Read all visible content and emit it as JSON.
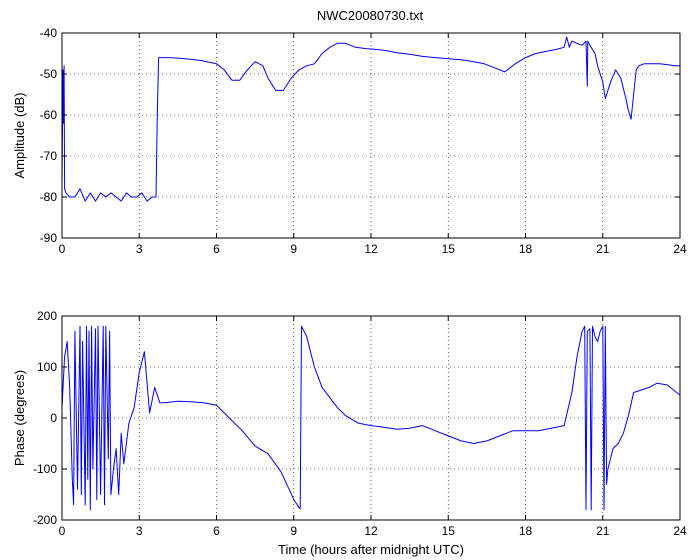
{
  "chart_data": [
    {
      "type": "line",
      "title": "NWC20080730.txt",
      "xlabel": "",
      "ylabel": "Amplitude (dB)",
      "xlim": [
        0,
        24
      ],
      "ylim": [
        -90,
        -40
      ],
      "xticks": [
        0,
        3,
        6,
        9,
        12,
        15,
        18,
        21,
        24
      ],
      "yticks": [
        -90,
        -80,
        -70,
        -60,
        -50,
        -40
      ],
      "grid": true,
      "series": [
        {
          "color": "#0000ff",
          "x": [
            0,
            0.04,
            0.06,
            0.08,
            0.1,
            0.15,
            0.3,
            0.5,
            0.7,
            0.9,
            1.1,
            1.3,
            1.5,
            1.7,
            1.9,
            2.1,
            2.3,
            2.5,
            2.7,
            2.9,
            3.1,
            3.3,
            3.5,
            3.65,
            3.7,
            3.75,
            3.8,
            4.2,
            4.8,
            5.4,
            6.0,
            6.3,
            6.6,
            6.9,
            7.2,
            7.5,
            7.8,
            8.0,
            8.3,
            8.6,
            8.9,
            9.2,
            9.5,
            9.8,
            10.1,
            10.4,
            10.7,
            11.0,
            11.4,
            11.8,
            12.2,
            12.6,
            13.0,
            13.5,
            14.0,
            14.5,
            15.0,
            15.5,
            16.0,
            16.4,
            16.8,
            17.2,
            17.6,
            18.0,
            18.4,
            18.8,
            19.2,
            19.5,
            19.6,
            19.7,
            19.8,
            20.0,
            20.2,
            20.35,
            20.4,
            20.42,
            20.5,
            20.7,
            20.8,
            20.9,
            21.0,
            21.1,
            21.3,
            21.5,
            21.7,
            21.9,
            22.0,
            22.1,
            22.2,
            22.3,
            22.4,
            22.6,
            22.9,
            23.2,
            23.5,
            23.8,
            24.0
          ],
          "y": [
            -77,
            -49,
            -62,
            -48,
            -78,
            -79,
            -80,
            -80,
            -78,
            -81,
            -79,
            -81,
            -79,
            -80,
            -79,
            -80,
            -81,
            -79,
            -80,
            -80,
            -79,
            -81,
            -80,
            -80,
            -60,
            -46,
            -46,
            -46,
            -46.3,
            -46.7,
            -47.5,
            -49,
            -51.5,
            -51.5,
            -49,
            -47,
            -48,
            -51,
            -54,
            -54,
            -51,
            -49,
            -48,
            -47.5,
            -45,
            -43.5,
            -42.5,
            -42.5,
            -43.5,
            -43.8,
            -44,
            -44.3,
            -44.8,
            -45.2,
            -45.7,
            -46,
            -46.3,
            -46.5,
            -47,
            -47.5,
            -48.5,
            -49.5,
            -47.5,
            -46,
            -45,
            -44.5,
            -44,
            -43.5,
            -41,
            -43.5,
            -42,
            -42.5,
            -43,
            -42,
            -53,
            -42,
            -43,
            -45,
            -48,
            -50,
            -52,
            -56,
            -52,
            -49,
            -51,
            -56,
            -59,
            -61,
            -55,
            -49,
            -48,
            -47.5,
            -47.5,
            -47.5,
            -47.7,
            -48,
            -48
          ]
        }
      ]
    },
    {
      "type": "line",
      "title": "",
      "xlabel": "Time (hours after midnight UTC)",
      "ylabel": "Phase (degrees)",
      "xlim": [
        0,
        24
      ],
      "ylim": [
        -200,
        200
      ],
      "xticks": [
        0,
        3,
        6,
        9,
        12,
        15,
        18,
        21,
        24
      ],
      "yticks": [
        -200,
        -100,
        0,
        100,
        200
      ],
      "grid": true,
      "series": [
        {
          "color": "#0000ff",
          "x": [
            0,
            0.1,
            0.2,
            0.3,
            0.4,
            0.45,
            0.5,
            0.6,
            0.7,
            0.75,
            0.8,
            0.9,
            0.95,
            1.0,
            1.05,
            1.1,
            1.15,
            1.2,
            1.3,
            1.35,
            1.4,
            1.5,
            1.6,
            1.65,
            1.7,
            1.8,
            1.85,
            1.9,
            2.0,
            2.1,
            2.2,
            2.3,
            2.4,
            2.6,
            2.8,
            3.0,
            3.2,
            3.4,
            3.6,
            3.8,
            4.0,
            4.5,
            5.0,
            5.5,
            6.0,
            6.3,
            6.6,
            7.0,
            7.5,
            8.0,
            8.5,
            9.0,
            9.2,
            9.25,
            9.3,
            9.35,
            9.5,
            9.8,
            10.1,
            10.4,
            10.7,
            11.0,
            11.5,
            12.0,
            12.5,
            13.0,
            13.5,
            14.0,
            14.5,
            15.0,
            15.5,
            16.0,
            16.5,
            17.0,
            17.5,
            18.0,
            18.5,
            19.0,
            19.5,
            19.8,
            20.0,
            20.2,
            20.3,
            20.35,
            20.4,
            20.5,
            20.55,
            20.6,
            20.65,
            20.7,
            20.8,
            20.9,
            21.0,
            21.05,
            21.1,
            21.15,
            21.2,
            21.4,
            21.6,
            21.8,
            22.0,
            22.2,
            22.5,
            22.8,
            23.1,
            23.5,
            24.0
          ],
          "y": [
            20,
            120,
            150,
            60,
            -120,
            -170,
            170,
            -140,
            180,
            -150,
            150,
            -170,
            180,
            -120,
            170,
            -180,
            180,
            -100,
            175,
            -160,
            180,
            -150,
            180,
            -170,
            180,
            -80,
            170,
            -150,
            -100,
            -60,
            -150,
            -30,
            -90,
            -10,
            20,
            90,
            130,
            10,
            60,
            30,
            30,
            33,
            32,
            30,
            25,
            10,
            -5,
            -25,
            -55,
            -70,
            -105,
            -160,
            -175,
            -178,
            180,
            175,
            160,
            100,
            60,
            40,
            20,
            5,
            -10,
            -15,
            -18,
            -22,
            -20,
            -15,
            -25,
            -35,
            -45,
            -50,
            -45,
            -35,
            -25,
            -25,
            -25,
            -20,
            -15,
            50,
            120,
            170,
            180,
            -180,
            170,
            175,
            -180,
            180,
            170,
            160,
            150,
            170,
            180,
            -180,
            180,
            -130,
            -100,
            -60,
            -50,
            -30,
            5,
            50,
            55,
            60,
            68,
            65,
            45
          ]
        }
      ]
    }
  ]
}
